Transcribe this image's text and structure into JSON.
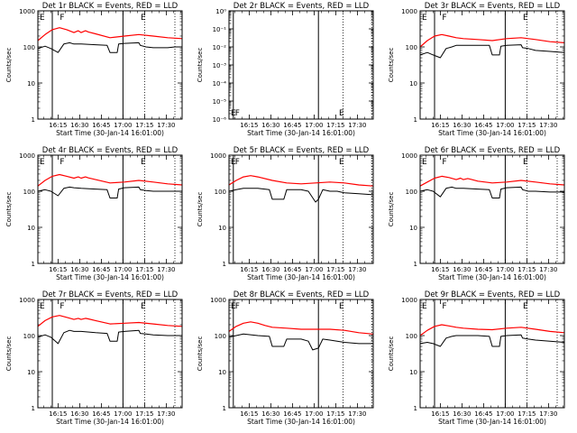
{
  "panel_title_suffix": " BLACK = Events, RED = LLD",
  "ylabel": "Counts/sec",
  "xlabel": "Start Time (30-Jan-14 16:01:00)",
  "x_tick_labels": [
    "16:15",
    "16:30",
    "16:45",
    "17:00",
    "17:15",
    "17:30"
  ],
  "x_ticks_min": [
    14,
    29,
    44,
    59,
    74,
    89
  ],
  "x_range_min": [
    0,
    100
  ],
  "marker_labels": {
    "E": "E",
    "F": "F"
  },
  "colors": {
    "events": "#000000",
    "lld": "#ff0000",
    "axes": "#000000"
  },
  "chart_data": [
    {
      "type": "line",
      "title": "Det 1r",
      "ylog": true,
      "ylim": [
        1,
        1000
      ],
      "y_tick_labels": [
        "1",
        "10",
        "100",
        "1000"
      ],
      "markers": {
        "solid": [
          10,
          59
        ],
        "dotted": [
          74,
          95
        ],
        "E": [
          0,
          70
        ],
        "F": [
          14
        ]
      },
      "series": [
        {
          "name": "BLACK = Events",
          "x": [
            0,
            5,
            9,
            14,
            18,
            22,
            25,
            30,
            40,
            48,
            50,
            55,
            56,
            60,
            70,
            71,
            75,
            80,
            85,
            90,
            95,
            100
          ],
          "y": [
            90,
            105,
            90,
            70,
            120,
            130,
            120,
            120,
            115,
            110,
            70,
            70,
            120,
            125,
            130,
            110,
            100,
            95,
            95,
            95,
            100,
            100
          ]
        },
        {
          "name": "RED = LLD",
          "x": [
            0,
            5,
            10,
            15,
            20,
            25,
            28,
            30,
            33,
            35,
            40,
            50,
            60,
            70,
            80,
            90,
            100
          ],
          "y": [
            150,
            220,
            300,
            340,
            300,
            250,
            280,
            250,
            280,
            260,
            230,
            180,
            200,
            220,
            200,
            180,
            170
          ]
        }
      ]
    },
    {
      "type": "line",
      "title": "Det 2r",
      "ylog": true,
      "ylim": [
        1e-06,
        1
      ],
      "y_tick_labels": [
        "10⁻⁶",
        "10⁻⁵",
        "10⁻⁴",
        "10⁻³",
        "10⁻²",
        "10⁻¹",
        "10⁰"
      ],
      "markers": {
        "solid": [
          3,
          62
        ],
        "dotted": [
          79,
          99
        ],
        "E": [
          0,
          75
        ],
        "F": [
          3
        ]
      },
      "series": []
    },
    {
      "type": "line",
      "title": "Det 3r",
      "ylog": true,
      "ylim": [
        1,
        1000
      ],
      "y_tick_labels": [
        "1",
        "10",
        "100",
        "1000"
      ],
      "markers": {
        "solid": [
          10,
          59
        ],
        "dotted": [
          74,
          95
        ],
        "E": [
          0,
          70
        ],
        "F": [
          14
        ]
      },
      "series": [
        {
          "name": "BLACK = Events",
          "x": [
            0,
            5,
            9,
            14,
            18,
            22,
            25,
            30,
            40,
            48,
            50,
            55,
            56,
            60,
            70,
            71,
            75,
            80,
            90,
            100
          ],
          "y": [
            60,
            70,
            60,
            50,
            90,
            100,
            110,
            110,
            110,
            110,
            60,
            60,
            105,
            110,
            115,
            95,
            90,
            80,
            75,
            70
          ]
        },
        {
          "name": "RED = LLD",
          "x": [
            0,
            5,
            10,
            15,
            20,
            25,
            30,
            40,
            50,
            60,
            70,
            80,
            90,
            100
          ],
          "y": [
            100,
            150,
            200,
            220,
            200,
            180,
            170,
            160,
            150,
            170,
            180,
            160,
            140,
            130
          ]
        }
      ]
    },
    {
      "type": "line",
      "title": "Det 4r",
      "ylog": true,
      "ylim": [
        1,
        1000
      ],
      "y_tick_labels": [
        "1",
        "10",
        "100",
        "1000"
      ],
      "markers": {
        "solid": [
          10,
          59
        ],
        "dotted": [
          74,
          95
        ],
        "E": [
          0,
          70
        ],
        "F": [
          14
        ]
      },
      "series": [
        {
          "name": "BLACK = Events",
          "x": [
            0,
            5,
            9,
            14,
            18,
            22,
            25,
            30,
            40,
            48,
            50,
            55,
            56,
            60,
            70,
            71,
            75,
            80,
            90,
            100
          ],
          "y": [
            100,
            110,
            100,
            75,
            120,
            130,
            125,
            120,
            115,
            110,
            65,
            65,
            115,
            125,
            130,
            110,
            105,
            100,
            100,
            100
          ]
        },
        {
          "name": "RED = LLD",
          "x": [
            0,
            5,
            10,
            15,
            20,
            25,
            28,
            30,
            33,
            35,
            40,
            50,
            60,
            70,
            80,
            90,
            100
          ],
          "y": [
            140,
            200,
            260,
            290,
            260,
            230,
            250,
            230,
            250,
            235,
            210,
            170,
            180,
            200,
            180,
            160,
            150
          ]
        }
      ]
    },
    {
      "type": "line",
      "title": "Det 5r",
      "ylog": true,
      "ylim": [
        1,
        1000
      ],
      "y_tick_labels": [
        "1",
        "10",
        "100",
        "1000"
      ],
      "markers": {
        "solid": [
          3,
          62
        ],
        "dotted": [
          79,
          99
        ],
        "E": [
          0,
          75
        ],
        "F": [
          3
        ]
      },
      "series": [
        {
          "name": "BLACK = Events",
          "x": [
            0,
            5,
            10,
            20,
            28,
            30,
            38,
            40,
            50,
            55,
            60,
            62,
            65,
            70,
            75,
            80,
            90,
            100
          ],
          "y": [
            100,
            110,
            120,
            120,
            110,
            60,
            60,
            110,
            110,
            100,
            50,
            60,
            110,
            100,
            100,
            90,
            85,
            80
          ]
        },
        {
          "name": "RED = LLD",
          "x": [
            0,
            5,
            10,
            15,
            20,
            30,
            40,
            50,
            60,
            70,
            80,
            90,
            100
          ],
          "y": [
            150,
            200,
            250,
            270,
            250,
            200,
            170,
            160,
            170,
            180,
            170,
            150,
            140
          ]
        }
      ]
    },
    {
      "type": "line",
      "title": "Det 6r",
      "ylog": true,
      "ylim": [
        1,
        1000
      ],
      "y_tick_labels": [
        "1",
        "10",
        "100",
        "1000"
      ],
      "markers": {
        "solid": [
          10,
          59
        ],
        "dotted": [
          74,
          95
        ],
        "E": [
          0,
          70
        ],
        "F": [
          14
        ]
      },
      "series": [
        {
          "name": "BLACK = Events",
          "x": [
            0,
            5,
            9,
            14,
            18,
            22,
            25,
            30,
            40,
            48,
            50,
            55,
            56,
            60,
            70,
            71,
            75,
            80,
            90,
            100
          ],
          "y": [
            100,
            110,
            100,
            70,
            120,
            130,
            120,
            120,
            115,
            110,
            65,
            65,
            115,
            125,
            130,
            110,
            100,
            100,
            95,
            95
          ]
        },
        {
          "name": "RED = LLD",
          "x": [
            0,
            5,
            10,
            15,
            20,
            25,
            28,
            30,
            33,
            35,
            40,
            50,
            60,
            70,
            80,
            90,
            100
          ],
          "y": [
            140,
            180,
            230,
            260,
            240,
            210,
            230,
            210,
            225,
            215,
            190,
            170,
            180,
            200,
            180,
            160,
            150
          ]
        }
      ]
    },
    {
      "type": "line",
      "title": "Det 7r",
      "ylog": true,
      "ylim": [
        1,
        1000
      ],
      "y_tick_labels": [
        "1",
        "10",
        "100",
        "1000"
      ],
      "markers": {
        "solid": [
          10,
          59
        ],
        "dotted": [
          74,
          95
        ],
        "E": [
          0,
          70
        ],
        "F": [
          14
        ]
      },
      "series": [
        {
          "name": "BLACK = Events",
          "x": [
            0,
            5,
            9,
            14,
            18,
            22,
            25,
            30,
            40,
            48,
            50,
            55,
            56,
            60,
            70,
            71,
            75,
            80,
            90,
            100
          ],
          "y": [
            90,
            105,
            90,
            60,
            120,
            140,
            130,
            130,
            120,
            115,
            70,
            70,
            125,
            130,
            140,
            115,
            110,
            105,
            100,
            100
          ]
        },
        {
          "name": "RED = LLD",
          "x": [
            0,
            5,
            10,
            15,
            20,
            25,
            28,
            30,
            33,
            35,
            40,
            50,
            60,
            70,
            80,
            90,
            100
          ],
          "y": [
            180,
            260,
            330,
            360,
            320,
            280,
            300,
            280,
            300,
            290,
            260,
            210,
            220,
            230,
            210,
            190,
            180
          ]
        }
      ]
    },
    {
      "type": "line",
      "title": "Det 8r",
      "ylog": true,
      "ylim": [
        1,
        1000
      ],
      "y_tick_labels": [
        "1",
        "10",
        "100",
        "1000"
      ],
      "markers": {
        "solid": [
          3,
          62
        ],
        "dotted": [
          79,
          99
        ],
        "E": [
          0,
          75
        ],
        "F": [
          3
        ]
      },
      "series": [
        {
          "name": "BLACK = Events",
          "x": [
            0,
            5,
            10,
            20,
            28,
            30,
            38,
            40,
            50,
            55,
            58,
            62,
            65,
            70,
            75,
            80,
            90,
            100
          ],
          "y": [
            90,
            100,
            110,
            100,
            95,
            50,
            50,
            80,
            80,
            70,
            40,
            45,
            80,
            75,
            70,
            65,
            60,
            60
          ]
        },
        {
          "name": "RED = LLD",
          "x": [
            0,
            5,
            10,
            15,
            20,
            25,
            30,
            40,
            50,
            60,
            70,
            80,
            90,
            100
          ],
          "y": [
            130,
            180,
            220,
            240,
            220,
            190,
            170,
            160,
            150,
            150,
            150,
            140,
            120,
            110
          ]
        }
      ]
    },
    {
      "type": "line",
      "title": "Det 9r",
      "ylog": true,
      "ylim": [
        1,
        1000
      ],
      "y_tick_labels": [
        "1",
        "10",
        "100",
        "1000"
      ],
      "markers": {
        "solid": [
          10,
          59
        ],
        "dotted": [
          74,
          95
        ],
        "E": [
          0,
          70
        ],
        "F": [
          14
        ]
      },
      "series": [
        {
          "name": "BLACK = Events",
          "x": [
            0,
            5,
            9,
            14,
            18,
            22,
            25,
            30,
            40,
            48,
            50,
            55,
            56,
            60,
            70,
            71,
            75,
            80,
            90,
            100
          ],
          "y": [
            60,
            65,
            60,
            50,
            85,
            95,
            100,
            100,
            100,
            95,
            50,
            50,
            95,
            100,
            105,
            85,
            80,
            75,
            70,
            65
          ]
        },
        {
          "name": "RED = LLD",
          "x": [
            0,
            5,
            10,
            15,
            20,
            25,
            30,
            40,
            50,
            60,
            70,
            80,
            90,
            100
          ],
          "y": [
            100,
            140,
            180,
            200,
            185,
            170,
            160,
            150,
            145,
            160,
            170,
            150,
            130,
            120
          ]
        }
      ]
    }
  ]
}
